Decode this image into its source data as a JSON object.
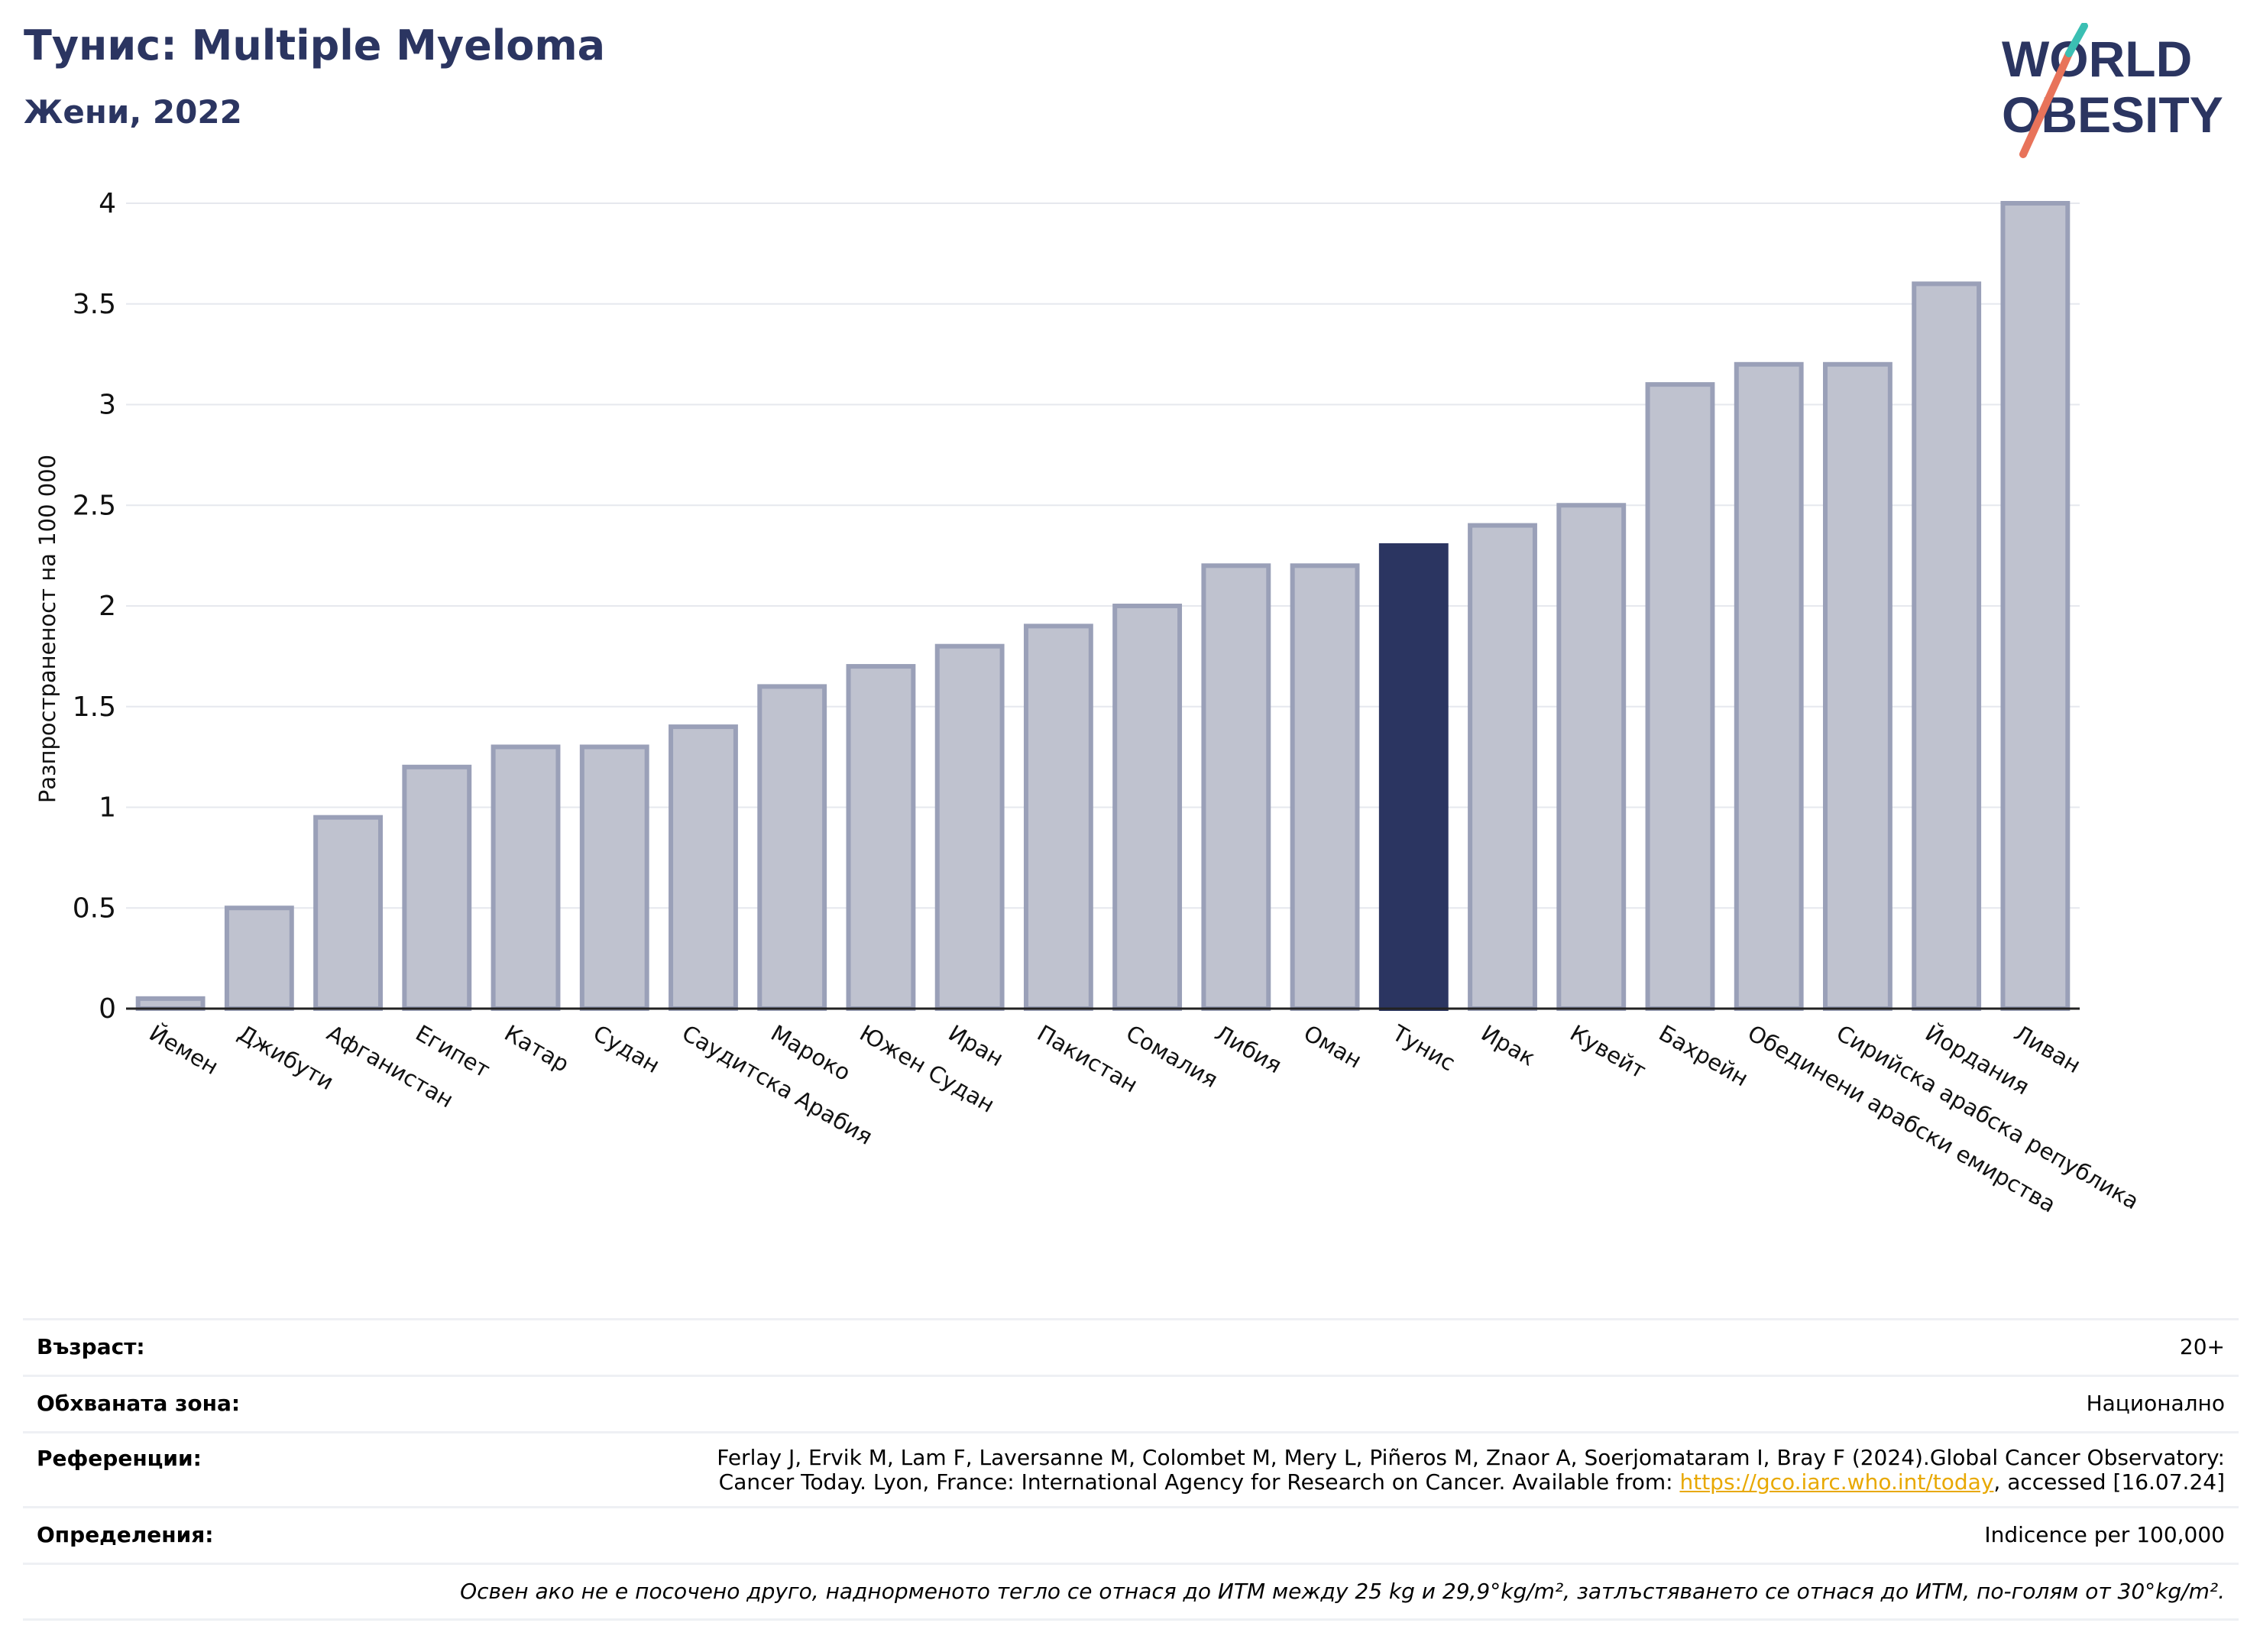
{
  "header": {
    "title": "Тунис: Multiple Myeloma",
    "subtitle": "Жени, 2022"
  },
  "logo": {
    "line1": "WORLD",
    "line2": "OBESITY"
  },
  "colors": {
    "highlight": "#2b3561",
    "bar": "#bfc2cf",
    "bar_edge": "#9aa0b8",
    "grid": "#e6e8ee"
  },
  "chart_data": {
    "type": "bar",
    "ylabel": "Разпространеност  на 100 000",
    "ylim": [
      0,
      4
    ],
    "yticks": [
      0,
      0.5,
      1,
      1.5,
      2,
      2.5,
      3,
      3.5,
      4
    ],
    "ytick_labels": [
      "0",
      "0.5",
      "1",
      "1.5",
      "2",
      "2.5",
      "3",
      "3.5",
      "4"
    ],
    "grid": true,
    "highlight": "Тунис",
    "categories": [
      "Йемен",
      "Джибути",
      "Афганистан",
      "Египет",
      "Катар",
      "Судан",
      "Саудитска Арабия",
      "Мароко",
      "Южен Судан",
      "Иран",
      "Пакистан",
      "Сомалия",
      "Либия",
      "Оман",
      "Тунис",
      "Ирак",
      "Кувейт",
      "Бахрейн",
      "Обединени арабски емирства",
      "Сирийска арабска република",
      "Йордания",
      "Ливан"
    ],
    "values": [
      0.05,
      0.5,
      0.95,
      1.2,
      1.3,
      1.3,
      1.4,
      1.6,
      1.7,
      1.8,
      1.9,
      2.0,
      2.2,
      2.2,
      2.3,
      2.4,
      2.5,
      3.1,
      3.2,
      3.2,
      3.6,
      4.0
    ]
  },
  "info": {
    "age_label": "Възраст:",
    "age_value": "20+",
    "area_label": "Обхваната зона:",
    "area_value": "Национално",
    "refs_label": "Референции:",
    "refs_line1": "Ferlay J, Ervik M, Lam F, Laversanne M, Colombet M, Mery L, Piñeros M, Znaor A, Soerjomataram I, Bray F (2024).Global Cancer Observatory:",
    "refs_line2_pre": "Cancer Today. Lyon, France: International Agency for Research on Cancer. Available from: ",
    "refs_link": "https://gco.iarc.who.int/today",
    "refs_line2_post": ", accessed [16.07.24]",
    "defs_label": "Определения:",
    "defs_value": "Indicence per 100,000",
    "note": "Освен ако не е посочено друго, наднорменото тегло се отнася до ИТМ между 25 kg и 29,9°kg/m², затлъстяването се отнася до ИТМ, по-голям от 30°kg/m²."
  }
}
